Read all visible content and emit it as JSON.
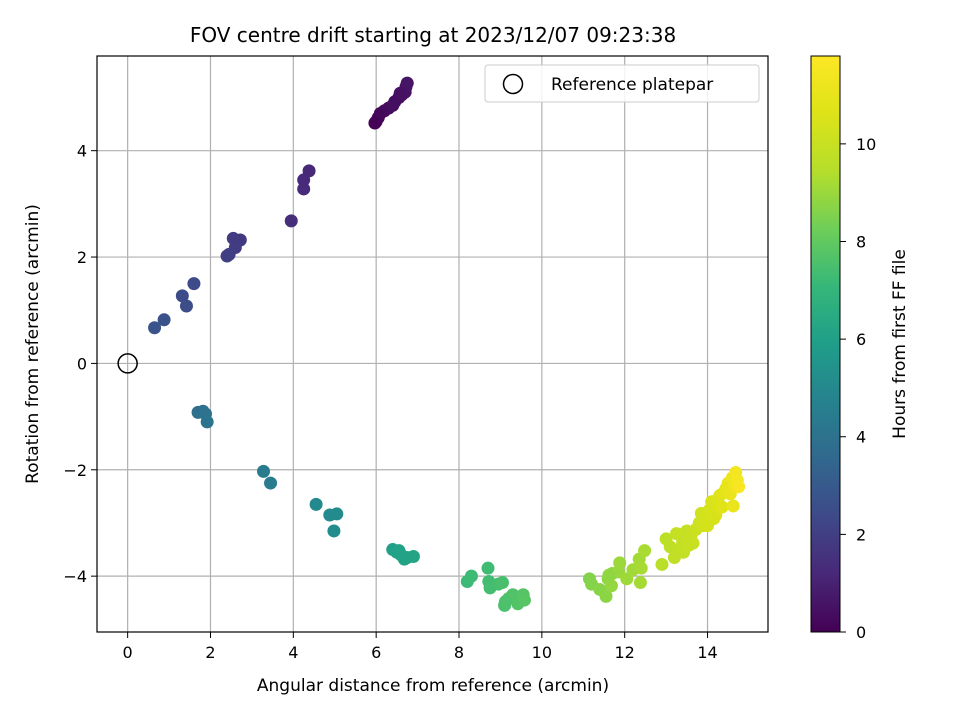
{
  "chart_data": {
    "type": "scatter",
    "title": "FOV centre drift starting at 2023/12/07 09:23:38",
    "xlabel": "Angular distance from reference (arcmin)",
    "ylabel": "Rotation from reference (arcmin)",
    "xlim": [
      -0.74,
      15.46
    ],
    "ylim": [
      -5.05,
      5.78
    ],
    "xticks": [
      0,
      2,
      4,
      6,
      8,
      10,
      12,
      14
    ],
    "yticks": [
      -4,
      -2,
      0,
      2,
      4
    ],
    "xtick_labels": [
      "0",
      "2",
      "4",
      "6",
      "8",
      "10",
      "12",
      "14"
    ],
    "ytick_labels": [
      "−4",
      "−2",
      "0",
      "2",
      "4"
    ],
    "grid": true,
    "legend_position": "top-right",
    "colormap": "viridis",
    "colorbar": {
      "label": "Hours from first FF file",
      "range": [
        0,
        11.8
      ],
      "ticks": [
        0,
        2,
        4,
        6,
        8,
        10
      ],
      "tick_labels": [
        "0",
        "2",
        "4",
        "6",
        "8",
        "10"
      ]
    },
    "reference": {
      "name": "Reference platepar",
      "x": 0,
      "y": 0,
      "marker": "open-circle",
      "color": "#000000"
    },
    "series": [
      {
        "points": [
          [
            6.0,
            4.55,
            0.1
          ],
          [
            6.05,
            4.62,
            0.15
          ],
          [
            6.1,
            4.7,
            0.2
          ],
          [
            6.2,
            4.75,
            0.25
          ],
          [
            6.3,
            4.8,
            0.3
          ],
          [
            6.45,
            4.92,
            0.35
          ],
          [
            6.55,
            5.0,
            0.4
          ],
          [
            6.62,
            5.05,
            0.45
          ],
          [
            6.7,
            5.1,
            0.5
          ],
          [
            6.72,
            5.2,
            0.55
          ],
          [
            6.75,
            5.27,
            0.6
          ],
          [
            6.4,
            4.85,
            0.38
          ],
          [
            5.97,
            4.52,
            0.05
          ],
          [
            6.58,
            5.08,
            0.48
          ],
          [
            4.38,
            3.62,
            1.2
          ],
          [
            4.25,
            3.45,
            1.25
          ],
          [
            4.25,
            3.28,
            1.3
          ],
          [
            3.95,
            2.68,
            1.4
          ],
          [
            2.72,
            2.32,
            1.8
          ],
          [
            2.55,
            2.35,
            1.85
          ],
          [
            2.6,
            2.18,
            1.9
          ],
          [
            2.45,
            2.05,
            1.95
          ],
          [
            2.4,
            2.02,
            2.0
          ],
          [
            1.6,
            1.5,
            2.4
          ],
          [
            1.32,
            1.27,
            2.45
          ],
          [
            1.42,
            1.08,
            2.5
          ],
          [
            0.88,
            0.82,
            2.7
          ],
          [
            0.65,
            0.67,
            2.75
          ],
          [
            1.7,
            -0.92,
            3.9
          ],
          [
            1.82,
            -0.9,
            3.95
          ],
          [
            1.88,
            -0.95,
            4.0
          ],
          [
            1.92,
            -1.1,
            4.05
          ],
          [
            3.28,
            -2.03,
            4.4
          ],
          [
            3.45,
            -2.25,
            4.45
          ],
          [
            4.55,
            -2.65,
            5.0
          ],
          [
            4.88,
            -2.85,
            5.05
          ],
          [
            5.05,
            -2.83,
            5.1
          ],
          [
            4.98,
            -3.15,
            5.15
          ],
          [
            6.4,
            -3.5,
            6.0
          ],
          [
            6.55,
            -3.52,
            6.05
          ],
          [
            6.6,
            -3.6,
            6.1
          ],
          [
            6.75,
            -3.65,
            6.15
          ],
          [
            6.9,
            -3.63,
            6.2
          ],
          [
            6.5,
            -3.55,
            6.08
          ],
          [
            6.68,
            -3.68,
            6.12
          ],
          [
            8.2,
            -4.1,
            7.2
          ],
          [
            8.3,
            -4.0,
            7.25
          ],
          [
            8.7,
            -3.85,
            7.3
          ],
          [
            8.72,
            -4.1,
            7.35
          ],
          [
            8.75,
            -4.22,
            7.4
          ],
          [
            8.95,
            -4.15,
            7.45
          ],
          [
            9.05,
            -4.12,
            7.5
          ],
          [
            9.1,
            -4.55,
            7.55
          ],
          [
            9.2,
            -4.42,
            7.6
          ],
          [
            9.3,
            -4.35,
            7.65
          ],
          [
            9.42,
            -4.52,
            7.7
          ],
          [
            9.55,
            -4.35,
            7.75
          ],
          [
            9.58,
            -4.45,
            7.8
          ],
          [
            9.12,
            -4.48,
            7.58
          ],
          [
            11.15,
            -4.05,
            8.6
          ],
          [
            11.2,
            -4.15,
            8.65
          ],
          [
            11.4,
            -4.25,
            8.7
          ],
          [
            11.55,
            -4.38,
            8.75
          ],
          [
            11.6,
            -4.05,
            8.8
          ],
          [
            11.7,
            -3.95,
            8.85
          ],
          [
            11.68,
            -4.18,
            8.9
          ],
          [
            11.85,
            -3.92,
            8.95
          ],
          [
            11.88,
            -3.75,
            9.0
          ],
          [
            12.05,
            -4.05,
            9.05
          ],
          [
            12.2,
            -3.88,
            9.1
          ],
          [
            12.35,
            -3.68,
            9.15
          ],
          [
            12.4,
            -3.85,
            9.2
          ],
          [
            12.48,
            -3.52,
            9.25
          ],
          [
            12.38,
            -4.12,
            9.18
          ],
          [
            11.62,
            -3.98,
            8.82
          ],
          [
            12.9,
            -3.78,
            9.6
          ],
          [
            13.0,
            -3.3,
            9.65
          ],
          [
            13.1,
            -3.45,
            9.7
          ],
          [
            13.2,
            -3.65,
            9.75
          ],
          [
            13.3,
            -3.5,
            9.8
          ],
          [
            13.25,
            -3.2,
            9.85
          ],
          [
            13.4,
            -3.35,
            9.9
          ],
          [
            13.5,
            -3.15,
            9.95
          ],
          [
            13.6,
            -3.25,
            10.0
          ],
          [
            13.65,
            -3.38,
            10.05
          ],
          [
            13.72,
            -3.12,
            10.1
          ],
          [
            13.8,
            -3.0,
            10.15
          ],
          [
            13.85,
            -2.82,
            10.2
          ],
          [
            13.9,
            -3.05,
            10.25
          ],
          [
            13.95,
            -2.9,
            10.3
          ],
          [
            14.05,
            -2.75,
            10.4
          ],
          [
            14.1,
            -2.6,
            10.5
          ],
          [
            14.2,
            -2.85,
            10.55
          ],
          [
            14.25,
            -2.55,
            10.6
          ],
          [
            14.3,
            -2.48,
            10.7
          ],
          [
            14.35,
            -2.7,
            10.75
          ],
          [
            14.4,
            -2.42,
            10.8
          ],
          [
            14.45,
            -2.35,
            10.9
          ],
          [
            14.5,
            -2.25,
            11.0
          ],
          [
            14.55,
            -2.45,
            11.05
          ],
          [
            14.6,
            -2.15,
            11.2
          ],
          [
            14.65,
            -2.3,
            11.3
          ],
          [
            14.68,
            -2.05,
            11.4
          ],
          [
            14.72,
            -2.2,
            11.5
          ],
          [
            14.75,
            -2.32,
            11.6
          ],
          [
            14.62,
            -2.68,
            11.1
          ],
          [
            14.15,
            -2.92,
            10.45
          ],
          [
            13.42,
            -3.55,
            9.88
          ],
          [
            13.35,
            -3.22,
            9.92
          ],
          [
            14.0,
            -3.05,
            10.35
          ],
          [
            13.55,
            -3.42,
            9.97
          ]
        ]
      }
    ]
  }
}
